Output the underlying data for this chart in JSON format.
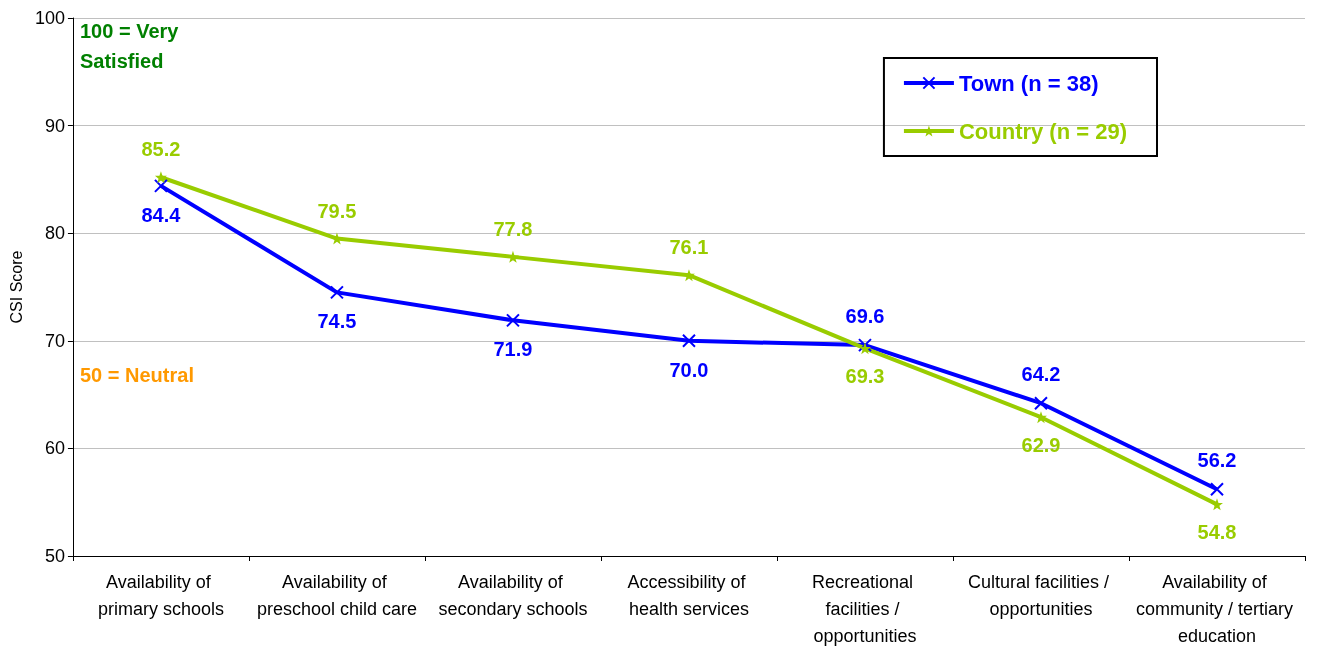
{
  "chart_data": {
    "type": "line",
    "ylabel": "CSI Score",
    "categories": [
      "Availability of primary schools",
      "Availability of preschool child care",
      "Availability of secondary schools",
      "Accessibility of health services",
      "Recreational facilities / opportunities",
      "Cultural facilities / opportunities",
      "Availability of community / tertiary education"
    ],
    "series": [
      {
        "name": "Town (n = 38)",
        "color": "#0000ff",
        "marker": "cross",
        "values": [
          84.4,
          74.5,
          71.9,
          70.0,
          69.6,
          64.2,
          56.2
        ],
        "value_labels": [
          "84.4",
          "74.5",
          "71.9",
          "70.0",
          "69.6",
          "64.2",
          "56.2"
        ]
      },
      {
        "name": "Country (n = 29)",
        "color": "#99cc00",
        "marker": "star",
        "values": [
          85.2,
          79.5,
          77.8,
          76.1,
          69.3,
          62.9,
          54.8
        ],
        "value_labels": [
          "85.2",
          "79.5",
          "77.8",
          "76.1",
          "69.3",
          "62.9",
          "54.8"
        ]
      }
    ],
    "ylim": [
      50,
      100
    ],
    "yticks": [
      50,
      60,
      70,
      80,
      90,
      100
    ],
    "grid": "y",
    "legend": "top right",
    "annotations": [
      "100 = Very Satisfied",
      "50 = Neutral"
    ]
  }
}
